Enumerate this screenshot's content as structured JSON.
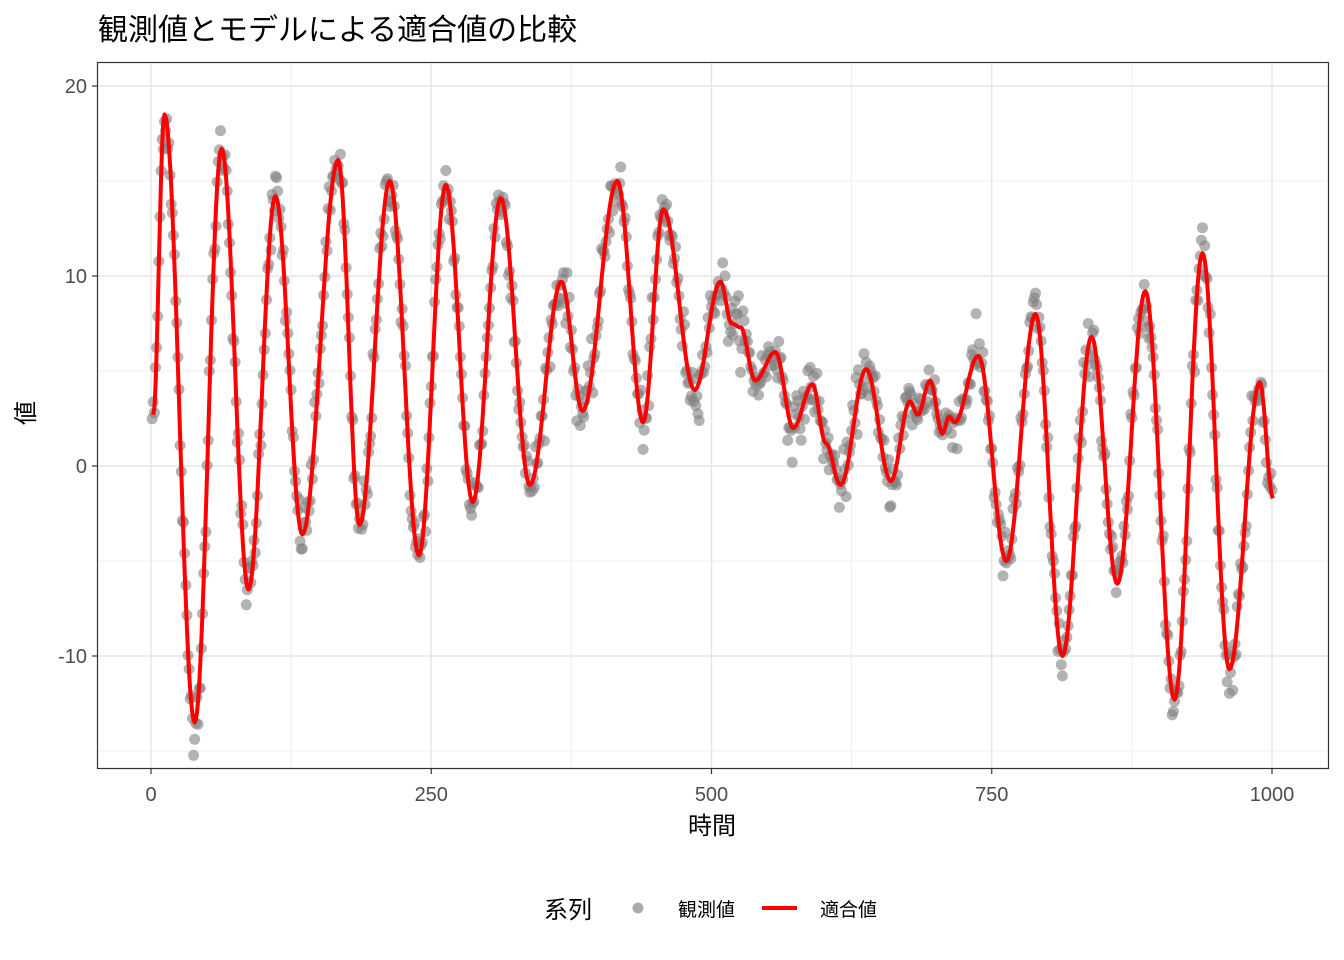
{
  "chart_data": {
    "type": "line",
    "title": "観測値とモデルによる適合値の比較",
    "xlabel": "時間",
    "ylabel": "値",
    "xlim": [
      -20,
      1050
    ],
    "ylim": [
      -15.5,
      20.5
    ],
    "x_ticks": [
      0,
      250,
      500,
      750,
      1000
    ],
    "x_tick_labels": [
      "0",
      "250",
      "500",
      "750",
      "1000"
    ],
    "y_ticks": [
      -10,
      0,
      10,
      20
    ],
    "y_tick_labels": [
      "-10",
      "0",
      "10",
      "20"
    ],
    "grid": true,
    "legend": {
      "title": "系列",
      "position": "bottom",
      "entries": [
        "観測値",
        "適合値"
      ]
    },
    "colors": {
      "observed": "#808080",
      "fitted": "#ff0000"
    },
    "series": [
      {
        "name": "適合値",
        "kind": "line",
        "note": "turning points of fitted curve (x, y)",
        "points": [
          [
            2,
            2.7
          ],
          [
            12,
            18.5
          ],
          [
            39,
            -13.5
          ],
          [
            63,
            16.7
          ],
          [
            87,
            -6.5
          ],
          [
            111,
            14.2
          ],
          [
            135,
            -3.6
          ],
          [
            167,
            16.1
          ],
          [
            186,
            -3.1
          ],
          [
            213,
            15.0
          ],
          [
            239,
            -4.7
          ],
          [
            263,
            14.8
          ],
          [
            287,
            -1.9
          ],
          [
            312,
            14.1
          ],
          [
            338,
            -1.0
          ],
          [
            366,
            9.7
          ],
          [
            385,
            2.9
          ],
          [
            416,
            15.0
          ],
          [
            439,
            2.3
          ],
          [
            457,
            13.5
          ],
          [
            485,
            4.0
          ],
          [
            508,
            9.7
          ],
          [
            518,
            7.5
          ],
          [
            526,
            7.3
          ],
          [
            539,
            4.5
          ],
          [
            557,
            6.0
          ],
          [
            573,
            2.0
          ],
          [
            590,
            4.3
          ],
          [
            602,
            1.2
          ],
          [
            615,
            -1.0
          ],
          [
            638,
            5.1
          ],
          [
            660,
            -0.8
          ],
          [
            677,
            3.4
          ],
          [
            684,
            2.7
          ],
          [
            695,
            4.5
          ],
          [
            706,
            1.7
          ],
          [
            712,
            2.6
          ],
          [
            717,
            2.3
          ],
          [
            738,
            5.8
          ],
          [
            763,
            -5.0
          ],
          [
            789,
            8.0
          ],
          [
            813,
            -10.0
          ],
          [
            839,
            6.8
          ],
          [
            862,
            -6.2
          ],
          [
            887,
            9.2
          ],
          [
            913,
            -12.3
          ],
          [
            938,
            11.2
          ],
          [
            962,
            -10.7
          ],
          [
            989,
            4.4
          ],
          [
            1001,
            -1.7
          ]
        ]
      },
      {
        "name": "観測値",
        "kind": "scatter",
        "note": "observations scattered around fitted curve",
        "x_range": [
          1,
          1000
        ],
        "noise_sd": 0.7
      }
    ]
  }
}
